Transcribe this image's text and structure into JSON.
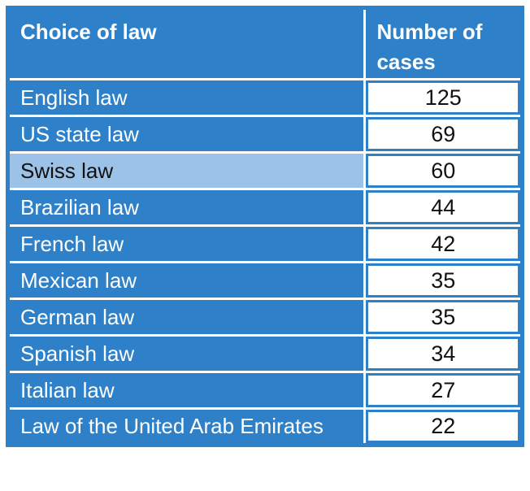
{
  "table": {
    "columns": [
      "Choice of law",
      "Number of cases"
    ],
    "rows": [
      {
        "law": "English law",
        "cases": "125",
        "highlighted": false
      },
      {
        "law": "US state law",
        "cases": "69",
        "highlighted": false
      },
      {
        "law": "Swiss law",
        "cases": "60",
        "highlighted": true
      },
      {
        "law": "Brazilian law",
        "cases": "44",
        "highlighted": false
      },
      {
        "law": "French law",
        "cases": "42",
        "highlighted": false
      },
      {
        "law": "Mexican law",
        "cases": "35",
        "highlighted": false
      },
      {
        "law": "German law",
        "cases": "35",
        "highlighted": false
      },
      {
        "law": "Spanish law",
        "cases": "34",
        "highlighted": false
      },
      {
        "law": "Italian law",
        "cases": "27",
        "highlighted": false
      },
      {
        "law": "Law of the United Arab Emirates",
        "cases": "22",
        "highlighted": false
      }
    ]
  },
  "chart_data": {
    "type": "table",
    "title": "",
    "columns": [
      "Choice of law",
      "Number of cases"
    ],
    "rows": [
      [
        "English law",
        125
      ],
      [
        "US state law",
        69
      ],
      [
        "Swiss law",
        60
      ],
      [
        "Brazilian law",
        44
      ],
      [
        "French law",
        42
      ],
      [
        "Mexican law",
        35
      ],
      [
        "German law",
        35
      ],
      [
        "Spanish law",
        34
      ],
      [
        "Italian law",
        27
      ],
      [
        "Law of the United Arab Emirates",
        22
      ]
    ],
    "highlighted_row": "Swiss law"
  },
  "colors": {
    "cell_blue": "#2E81C8",
    "highlight_row_blue": "#9DC2E8",
    "gridline_white": "#FFFFFF",
    "header_text": "#FFFFFF",
    "value_text": "#111111"
  }
}
